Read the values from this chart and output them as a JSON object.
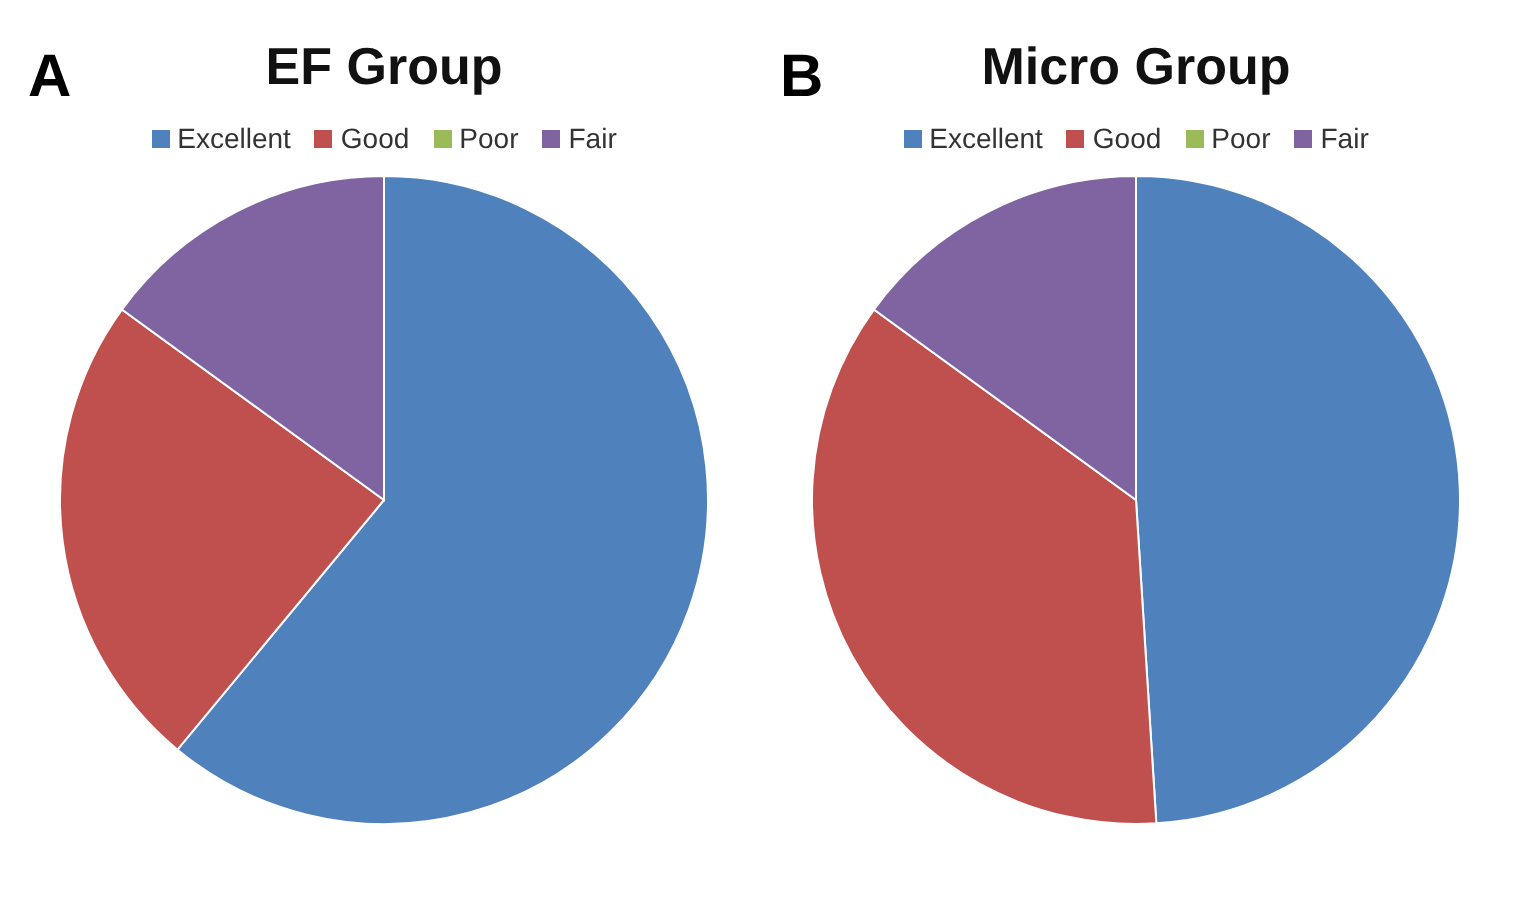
{
  "chart_data": [
    {
      "type": "pie",
      "title": "EF Group",
      "annotations": [
        "A"
      ],
      "categories": [
        "Excellent",
        "Good",
        "Poor",
        "Fair"
      ],
      "values": [
        61,
        24,
        0,
        15
      ],
      "colors": [
        "#4f81bd",
        "#c0504d",
        "#9bbb59",
        "#8064a2"
      ],
      "legend": "top"
    },
    {
      "type": "pie",
      "title": "Micro Group",
      "annotations": [
        "B"
      ],
      "categories": [
        "Excellent",
        "Good",
        "Poor",
        "Fair"
      ],
      "values": [
        49,
        36,
        0,
        15
      ],
      "colors": [
        "#4f81bd",
        "#c0504d",
        "#9bbb59",
        "#8064a2"
      ],
      "legend": "top"
    }
  ]
}
